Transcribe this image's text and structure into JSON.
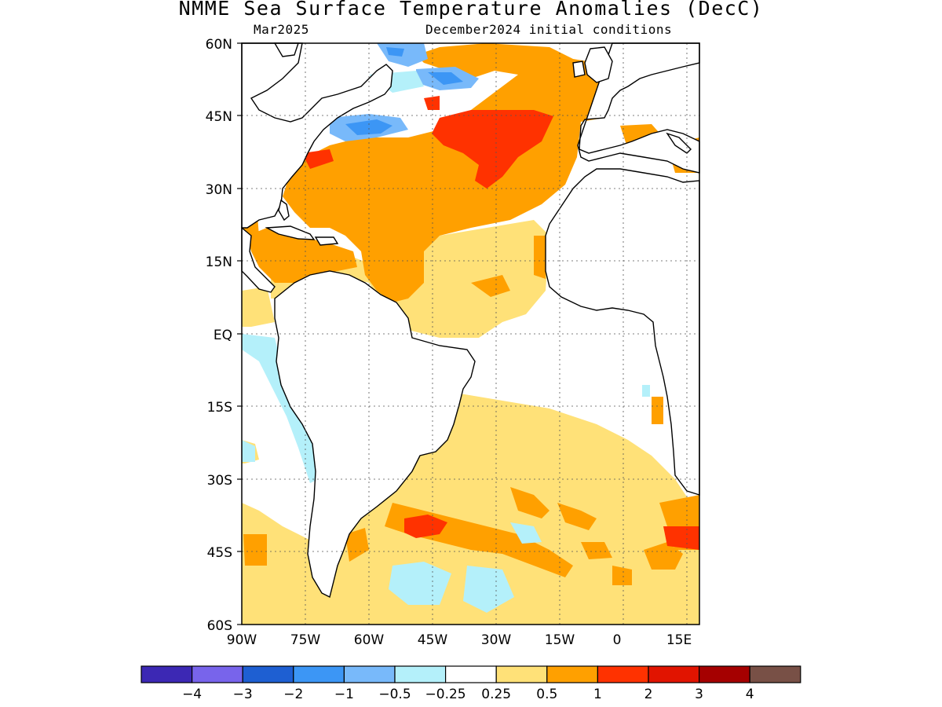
{
  "title": "NMME Sea Surface Temperature Anomalies (DecC)",
  "subtitle_left": "Mar2025",
  "subtitle_right": "December2024 initial conditions",
  "map": {
    "lat_labels": [
      "60N",
      "45N",
      "30N",
      "15N",
      "EQ",
      "15S",
      "30S",
      "45S",
      "60S"
    ],
    "lon_labels": [
      "90W",
      "75W",
      "60W",
      "45W",
      "30W",
      "15W",
      "0",
      "15E"
    ],
    "lat_range": [
      -60,
      60
    ],
    "lon_range": [
      -90,
      18
    ],
    "grid": true
  },
  "colorbar": {
    "colors": [
      "#3c28b4",
      "#7864eb",
      "#1e5fd2",
      "#3c96f5",
      "#78b9fa",
      "#b4f0fa",
      "#ffffff",
      "#ffe178",
      "#ffa000",
      "#ff3200",
      "#e11400",
      "#a50000",
      "#785046"
    ],
    "labels": [
      "−4",
      "−3",
      "−2",
      "−1",
      "−0.5",
      "−0.25",
      "0.25",
      "0.5",
      "1",
      "2",
      "3",
      "4"
    ]
  }
}
